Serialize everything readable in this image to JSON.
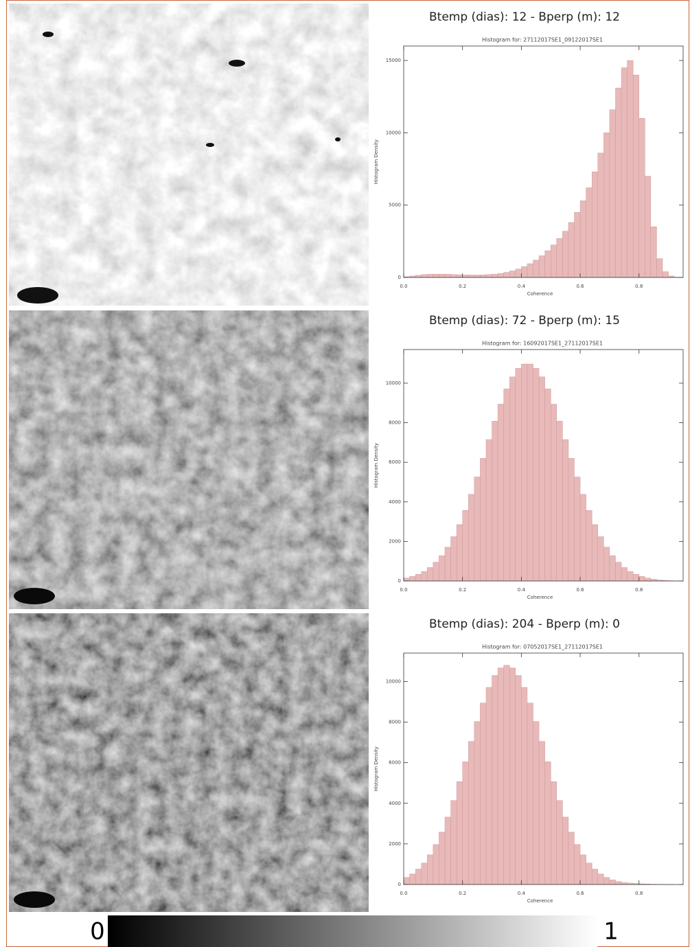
{
  "chart_data": [
    {
      "type": "histogram",
      "title": "Btemp (dias): 12 - Bperp (m): 12",
      "subtitle": "Histogram for: 27112017SE1_09122017SE1",
      "x_label": "Coherence",
      "y_label": "Histogram Density",
      "color": "#e8b9b9",
      "bins": [
        0,
        0.02,
        0.04,
        0.06,
        0.08,
        0.1,
        0.12,
        0.14,
        0.16,
        0.18,
        0.2,
        0.22,
        0.24,
        0.26,
        0.28,
        0.3,
        0.32,
        0.34,
        0.36,
        0.38,
        0.4,
        0.42,
        0.44,
        0.46,
        0.48,
        0.5,
        0.52,
        0.54,
        0.56,
        0.58,
        0.6,
        0.62,
        0.64,
        0.66,
        0.68,
        0.7,
        0.72,
        0.74,
        0.76,
        0.78,
        0.8,
        0.82,
        0.84,
        0.86,
        0.88,
        0.9,
        0.92,
        0.94
      ],
      "values": [
        50,
        100,
        150,
        200,
        220,
        230,
        230,
        220,
        200,
        190,
        180,
        170,
        170,
        180,
        200,
        230,
        280,
        350,
        450,
        580,
        750,
        950,
        1200,
        1500,
        1850,
        2250,
        2700,
        3200,
        3800,
        4500,
        5300,
        6200,
        7300,
        8600,
        10000,
        11600,
        13100,
        14500,
        15000,
        14000,
        11000,
        7000,
        3500,
        1300,
        400,
        100,
        20
      ],
      "xlim": [
        0,
        0.95
      ],
      "ylim": [
        0,
        16000
      ],
      "xticks": [
        {
          "value": 0,
          "label": "0.0"
        },
        0.2,
        0.4,
        0.6,
        0.8
      ],
      "yticks": [
        0,
        5000,
        10000,
        15000
      ]
    },
    {
      "type": "histogram",
      "title": "Btemp (dias): 72 - Bperp (m): 15",
      "subtitle": "Histogram for: 16092017SE1_27112017SE1",
      "x_label": "Coherence",
      "y_label": "Histogram Density",
      "color": "#e8b9b9",
      "bins": [
        0,
        0.02,
        0.04,
        0.06,
        0.08,
        0.1,
        0.12,
        0.14,
        0.16,
        0.18,
        0.2,
        0.22,
        0.24,
        0.26,
        0.28,
        0.3,
        0.32,
        0.34,
        0.36,
        0.38,
        0.4,
        0.42,
        0.44,
        0.46,
        0.48,
        0.5,
        0.52,
        0.54,
        0.56,
        0.58,
        0.6,
        0.62,
        0.64,
        0.66,
        0.68,
        0.7,
        0.72,
        0.74,
        0.76,
        0.78,
        0.8,
        0.82,
        0.84,
        0.86,
        0.88,
        0.9,
        0.92,
        0.94
      ],
      "values": [
        150,
        230,
        340,
        480,
        680,
        950,
        1280,
        1710,
        2240,
        2850,
        3570,
        4380,
        5260,
        6200,
        7150,
        8080,
        8940,
        9710,
        10320,
        10750,
        10970,
        10970,
        10750,
        10320,
        9710,
        8940,
        8080,
        7150,
        6200,
        5260,
        4380,
        3570,
        2850,
        2240,
        1710,
        1280,
        950,
        680,
        480,
        340,
        230,
        150,
        90,
        50,
        30,
        15,
        8
      ],
      "xlim": [
        0,
        0.95
      ],
      "ylim": [
        0,
        11700
      ],
      "xticks": [
        {
          "value": 0,
          "label": "0.0"
        },
        0.2,
        0.4,
        0.6,
        0.8
      ],
      "yticks": [
        0,
        2000,
        4000,
        6000,
        8000,
        10000
      ]
    },
    {
      "type": "histogram",
      "title": "Btemp (dias): 204 - Bperp (m): 0",
      "subtitle": "Histogram for: 07052017SE1_27112017SE1",
      "x_label": "Coherence",
      "y_label": "Histogram Density",
      "color": "#e8b9b9",
      "bins": [
        0,
        0.02,
        0.04,
        0.06,
        0.08,
        0.1,
        0.12,
        0.14,
        0.16,
        0.18,
        0.2,
        0.22,
        0.24,
        0.26,
        0.28,
        0.3,
        0.32,
        0.34,
        0.36,
        0.38,
        0.4,
        0.42,
        0.44,
        0.46,
        0.48,
        0.5,
        0.52,
        0.54,
        0.56,
        0.58,
        0.6,
        0.62,
        0.64,
        0.66,
        0.68,
        0.7,
        0.72,
        0.74,
        0.76,
        0.78,
        0.8,
        0.82,
        0.84,
        0.86,
        0.88,
        0.9,
        0.92,
        0.94
      ],
      "values": [
        350,
        520,
        760,
        1060,
        1460,
        1970,
        2580,
        3320,
        4140,
        5070,
        6050,
        7050,
        8030,
        8940,
        9710,
        10300,
        10670,
        10800,
        10670,
        10300,
        9710,
        8940,
        8030,
        7050,
        6050,
        5070,
        4140,
        3320,
        2580,
        1970,
        1460,
        1060,
        760,
        520,
        350,
        230,
        150,
        100,
        70,
        50,
        35,
        25,
        15,
        10,
        5,
        3,
        0
      ],
      "xlim": [
        0,
        0.95
      ],
      "ylim": [
        0,
        11400
      ],
      "xticks": [
        {
          "value": 0,
          "label": "0.0"
        },
        0.2,
        0.4,
        0.6,
        0.8
      ],
      "yticks": [
        0,
        2000,
        4000,
        6000,
        8000,
        10000
      ]
    }
  ],
  "colorbar": {
    "ticks": [
      0,
      1
    ]
  }
}
